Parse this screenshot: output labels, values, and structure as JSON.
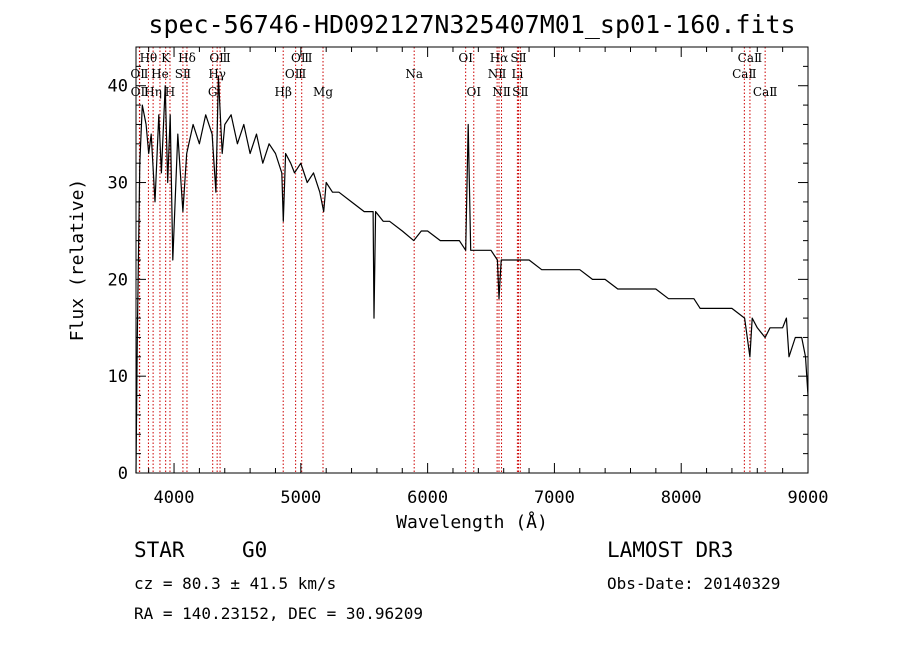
{
  "chart_data": {
    "type": "line",
    "title": "spec-56746-HD092127N325407M01_sp01-160.fits",
    "xlabel": "Wavelength (Å)",
    "ylabel": "Flux (relative)",
    "xlim": [
      3700,
      9000
    ],
    "ylim": [
      0,
      44
    ],
    "xticks": [
      4000,
      5000,
      6000,
      7000,
      8000,
      9000
    ],
    "yticks": [
      0,
      10,
      20,
      30,
      40
    ],
    "grid": false,
    "series": [
      {
        "name": "spectrum",
        "x": [
          3700,
          3710,
          3730,
          3750,
          3780,
          3800,
          3820,
          3850,
          3880,
          3900,
          3930,
          3950,
          3970,
          3990,
          4030,
          4070,
          4100,
          4150,
          4200,
          4250,
          4300,
          4330,
          4350,
          4380,
          4400,
          4450,
          4500,
          4550,
          4600,
          4650,
          4700,
          4750,
          4800,
          4850,
          4862,
          4880,
          4920,
          4950,
          5000,
          5050,
          5100,
          5150,
          5180,
          5200,
          5250,
          5300,
          5400,
          5500,
          5570,
          5577,
          5590,
          5650,
          5700,
          5800,
          5890,
          5950,
          6000,
          6100,
          6200,
          6250,
          6300,
          6320,
          6340,
          6400,
          6450,
          6500,
          6550,
          6563,
          6580,
          6650,
          6700,
          6800,
          6900,
          7000,
          7100,
          7200,
          7300,
          7400,
          7500,
          7600,
          7700,
          7800,
          7900,
          8000,
          8100,
          8150,
          8200,
          8300,
          8400,
          8500,
          8542,
          8560,
          8600,
          8662,
          8700,
          8750,
          8800,
          8830,
          8850,
          8900,
          8950,
          8980,
          9000
        ],
        "y": [
          0,
          14,
          32,
          38,
          36,
          33,
          35,
          28,
          37,
          31,
          40,
          30,
          37,
          22,
          35,
          27,
          33,
          36,
          34,
          37,
          35,
          29,
          41,
          33,
          36,
          37,
          34,
          36,
          33,
          35,
          32,
          34,
          33,
          31,
          26,
          33,
          32,
          31,
          32,
          30,
          31,
          29,
          27,
          30,
          29,
          29,
          28,
          27,
          27,
          16,
          27,
          26,
          26,
          25,
          24,
          25,
          25,
          24,
          24,
          24,
          23,
          36,
          23,
          23,
          23,
          23,
          22,
          18,
          22,
          22,
          22,
          22,
          21,
          21,
          21,
          21,
          20,
          20,
          19,
          19,
          19,
          19,
          18,
          18,
          18,
          17,
          17,
          17,
          17,
          16,
          12,
          16,
          15,
          14,
          15,
          15,
          15,
          16,
          12,
          14,
          14,
          12,
          8
        ]
      }
    ],
    "lines": [
      {
        "label": "Hθ",
        "x": 3798,
        "row": 1
      },
      {
        "label": "OⅡ",
        "x": 3727,
        "row": 2
      },
      {
        "label": "OⅡ",
        "x": 3729,
        "row": 3
      },
      {
        "label": "Hη",
        "x": 3835,
        "row": 3
      },
      {
        "label": "He",
        "x": 3889,
        "row": 2
      },
      {
        "label": "K",
        "x": 3934,
        "row": 1
      },
      {
        "label": "H",
        "x": 3968,
        "row": 3
      },
      {
        "label": "SⅡ",
        "x": 4070,
        "row": 2
      },
      {
        "label": "Hδ",
        "x": 4102,
        "row": 1
      },
      {
        "label": "G",
        "x": 4305,
        "row": 3
      },
      {
        "label": "OⅢ",
        "x": 4363,
        "row": 1
      },
      {
        "label": "Hγ",
        "x": 4340,
        "row": 2
      },
      {
        "label": "Hβ",
        "x": 4861,
        "row": 3
      },
      {
        "label": "OⅢ",
        "x": 4959,
        "row": 2
      },
      {
        "label": "OⅢ",
        "x": 5007,
        "row": 1
      },
      {
        "label": "Mg",
        "x": 5175,
        "row": 3
      },
      {
        "label": "Na",
        "x": 5894,
        "row": 2
      },
      {
        "label": "OⅠ",
        "x": 6300,
        "row": 1
      },
      {
        "label": "OⅠ",
        "x": 6364,
        "row": 3
      },
      {
        "label": "Hα",
        "x": 6563,
        "row": 1
      },
      {
        "label": "NⅡ",
        "x": 6548,
        "row": 2
      },
      {
        "label": "NⅡ",
        "x": 6583,
        "row": 3
      },
      {
        "label": "SⅡ",
        "x": 6717,
        "row": 1
      },
      {
        "label": "Li",
        "x": 6708,
        "row": 2
      },
      {
        "label": "SⅡ",
        "x": 6731,
        "row": 3
      },
      {
        "label": "CaⅡ",
        "x": 8542,
        "row": 1
      },
      {
        "label": "CaⅡ",
        "x": 8498,
        "row": 2
      },
      {
        "label": "CaⅡ",
        "x": 8662,
        "row": 3
      }
    ]
  },
  "info": {
    "object_class": "STAR",
    "subclass": "G0",
    "survey": "LAMOST DR3",
    "redshift": "cz = 80.3 ± 41.5 km/s",
    "obs_date": "Obs-Date: 20140329",
    "coords": "RA = 140.23152, DEC =  30.96209"
  },
  "colors": {
    "spectrum": "#000000",
    "line_marker": "#cc0000",
    "axes": "#000000"
  }
}
